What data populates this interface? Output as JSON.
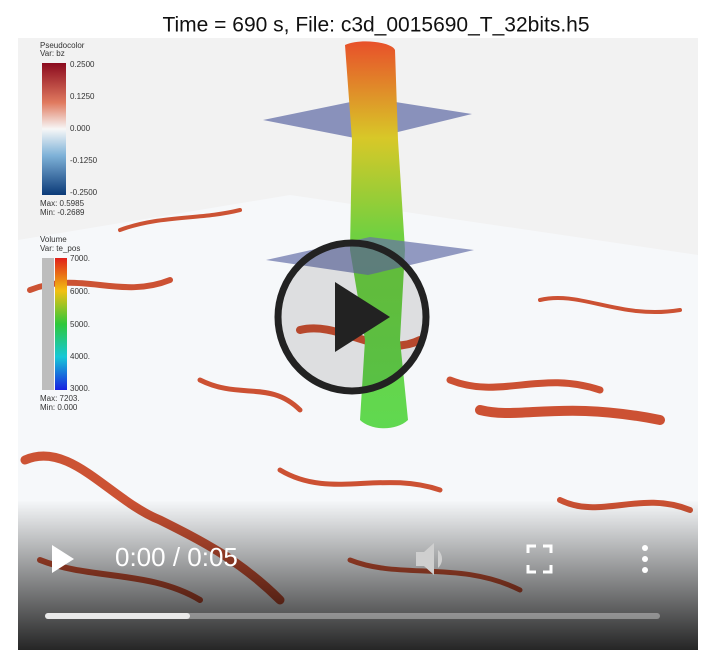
{
  "header": {
    "title": "Time = 690 s, File: c3d_0015690_T_32bits.h5"
  },
  "legend_pseudocolor": {
    "title": "Pseudocolor",
    "var": "Var: bz",
    "ticks": [
      "0.2500",
      "0.1250",
      "0.000",
      "-0.1250",
      "-0.2500"
    ],
    "max": "Max: 0.5985",
    "min": "Min: -0.2689"
  },
  "legend_volume": {
    "title": "Volume",
    "var": "Var: te_pos",
    "ticks": [
      "7000.",
      "6000.",
      "5000.",
      "4000.",
      "3000."
    ],
    "max": "Max: 7203.",
    "min": "Min: 0.000"
  },
  "player": {
    "time": "0:00 / 0:05"
  }
}
